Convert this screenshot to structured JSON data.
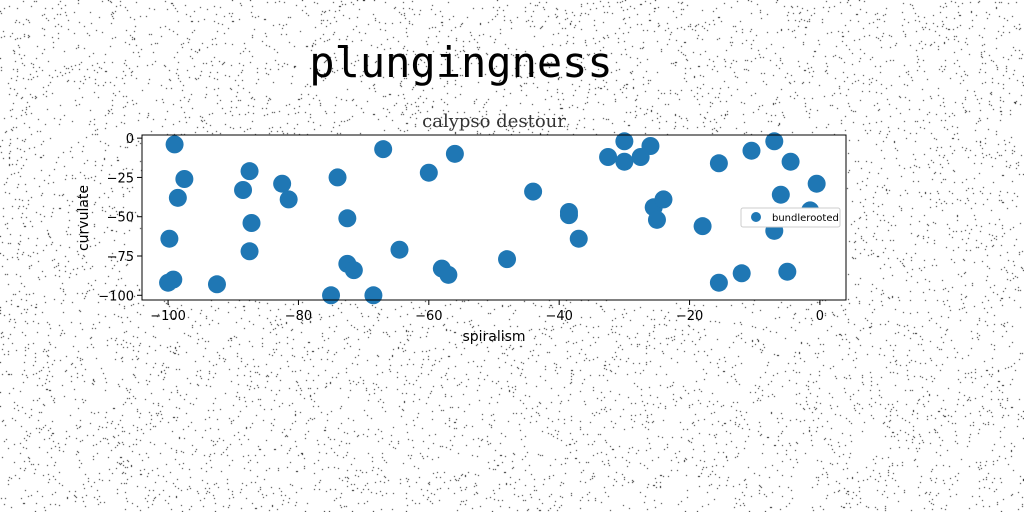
{
  "figure": {
    "suptitle": "plungingness"
  },
  "chart_data": {
    "type": "scatter",
    "title": "calypso destour",
    "xlabel": "spiralism",
    "ylabel": "curvulate",
    "xlim": [
      -104,
      4
    ],
    "ylim": [
      -103,
      2
    ],
    "xticks": [
      -100,
      -80,
      -60,
      -40,
      -20,
      0
    ],
    "yticks": [
      0,
      -25,
      -50,
      -75,
      -100
    ],
    "xtick_labels": [
      "−100",
      "−80",
      "−60",
      "−40",
      "−20",
      "0"
    ],
    "ytick_labels": [
      "0",
      "−25",
      "−50",
      "−75",
      "−100"
    ],
    "legend_position": "center-right",
    "grid": false,
    "series": [
      {
        "name": "bundlerooted",
        "color": "#1f77b4",
        "points": [
          [
            -99,
            -4
          ],
          [
            -97.5,
            -26
          ],
          [
            -98.5,
            -38
          ],
          [
            -99.8,
            -64
          ],
          [
            -99.2,
            -90
          ],
          [
            -100,
            -92
          ],
          [
            -92.5,
            -93
          ],
          [
            -88.5,
            -33
          ],
          [
            -87.5,
            -21
          ],
          [
            -87.2,
            -54
          ],
          [
            -87.5,
            -72
          ],
          [
            -82.5,
            -29
          ],
          [
            -81.5,
            -39
          ],
          [
            -74,
            -25
          ],
          [
            -72.5,
            -51
          ],
          [
            -72.5,
            -80
          ],
          [
            -71.5,
            -84
          ],
          [
            -75,
            -100
          ],
          [
            -68.5,
            -100
          ],
          [
            -67,
            -7
          ],
          [
            -64.5,
            -71
          ],
          [
            -60,
            -22
          ],
          [
            -56,
            -10
          ],
          [
            -58,
            -83
          ],
          [
            -57,
            -87
          ],
          [
            -48,
            -77
          ],
          [
            -44,
            -34
          ],
          [
            -38.5,
            -47
          ],
          [
            -38.5,
            -49
          ],
          [
            -37,
            -64
          ],
          [
            -32.5,
            -12
          ],
          [
            -30,
            -2
          ],
          [
            -30,
            -15
          ],
          [
            -27.5,
            -12
          ],
          [
            -26,
            -5
          ],
          [
            -25.5,
            -44
          ],
          [
            -25,
            -52
          ],
          [
            -24,
            -39
          ],
          [
            -18,
            -56
          ],
          [
            -15.5,
            -16
          ],
          [
            -15.5,
            -92
          ],
          [
            -12,
            -86
          ],
          [
            -10.5,
            -8
          ],
          [
            -7,
            -2
          ],
          [
            -7,
            -59
          ],
          [
            -6,
            -36
          ],
          [
            -4.5,
            -15
          ],
          [
            -5,
            -85
          ],
          [
            -1.5,
            -46
          ],
          [
            -0.5,
            -29
          ]
        ]
      }
    ]
  }
}
